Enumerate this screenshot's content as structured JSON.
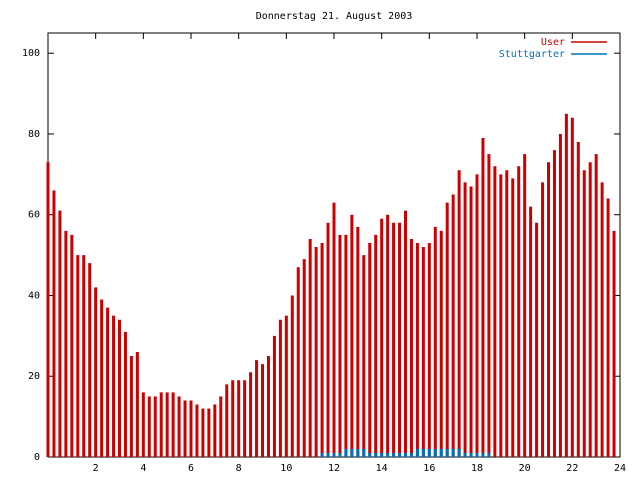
{
  "chart_data": {
    "type": "impulses",
    "title": "Donnerstag 21. August 2003",
    "x": [
      0,
      0.25,
      0.5,
      0.75,
      1,
      1.25,
      1.5,
      1.75,
      2,
      2.25,
      2.5,
      2.75,
      3,
      3.25,
      3.5,
      3.75,
      4,
      4.25,
      4.5,
      4.75,
      5,
      5.25,
      5.5,
      5.75,
      6,
      6.25,
      6.5,
      6.75,
      7,
      7.25,
      7.5,
      7.75,
      8,
      8.25,
      8.5,
      8.75,
      9,
      9.25,
      9.5,
      9.75,
      10,
      10.25,
      10.5,
      10.75,
      11,
      11.25,
      11.5,
      11.75,
      12,
      12.25,
      12.5,
      12.75,
      13,
      13.25,
      13.5,
      13.75,
      14,
      14.25,
      14.5,
      14.75,
      15,
      15.25,
      15.5,
      15.75,
      16,
      16.25,
      16.5,
      16.75,
      17,
      17.25,
      17.5,
      17.75,
      18,
      18.25,
      18.5,
      18.75,
      19,
      19.25,
      19.5,
      19.75,
      20,
      20.25,
      20.5,
      20.75,
      21,
      21.25,
      21.5,
      21.75,
      22,
      22.25,
      22.5,
      22.75,
      23,
      23.25,
      23.5,
      23.75
    ],
    "series": [
      {
        "name": "User",
        "color": "#cc0000",
        "values": [
          73,
          66,
          61,
          56,
          55,
          50,
          50,
          48,
          42,
          39,
          37,
          35,
          34,
          31,
          25,
          26,
          16,
          15,
          15,
          16,
          16,
          16,
          15,
          14,
          14,
          13,
          12,
          12,
          13,
          15,
          18,
          19,
          19,
          19,
          21,
          24,
          23,
          25,
          30,
          34,
          35,
          40,
          47,
          49,
          54,
          52,
          53,
          58,
          63,
          55,
          55,
          60,
          57,
          50,
          53,
          55,
          59,
          60,
          58,
          58,
          61,
          54,
          53,
          52,
          53,
          57,
          56,
          63,
          65,
          71,
          68,
          67,
          70,
          79,
          75,
          72,
          70,
          71,
          69,
          72,
          75,
          62,
          58,
          68,
          73,
          76,
          80,
          85,
          84,
          78,
          71,
          73,
          75,
          68,
          64,
          56
        ]
      },
      {
        "name": "Stuttgarter",
        "color": "#0072bd",
        "values": [
          null,
          null,
          null,
          null,
          null,
          null,
          null,
          null,
          null,
          null,
          null,
          null,
          null,
          null,
          null,
          null,
          null,
          null,
          null,
          null,
          null,
          null,
          null,
          null,
          null,
          null,
          null,
          null,
          null,
          null,
          null,
          null,
          null,
          null,
          null,
          null,
          null,
          null,
          null,
          null,
          null,
          null,
          null,
          null,
          null,
          null,
          1,
          1,
          1,
          1,
          2,
          2,
          2,
          2,
          1,
          1,
          1,
          1,
          1,
          1,
          1,
          1,
          2,
          2,
          2,
          2,
          2,
          2,
          2,
          2,
          1,
          1,
          1,
          1,
          1,
          null,
          null,
          null,
          null,
          null,
          null,
          null,
          null,
          null,
          null,
          null,
          null,
          null,
          null,
          null,
          null,
          null,
          null,
          null,
          null,
          null
        ]
      }
    ],
    "xlim": [
      0,
      24
    ],
    "xticks": [
      2,
      4,
      6,
      8,
      10,
      12,
      14,
      16,
      18,
      20,
      22,
      24
    ],
    "ylim": [
      0,
      105
    ],
    "yticks": [
      0,
      20,
      40,
      60,
      80,
      100
    ],
    "legend": "top-right"
  }
}
